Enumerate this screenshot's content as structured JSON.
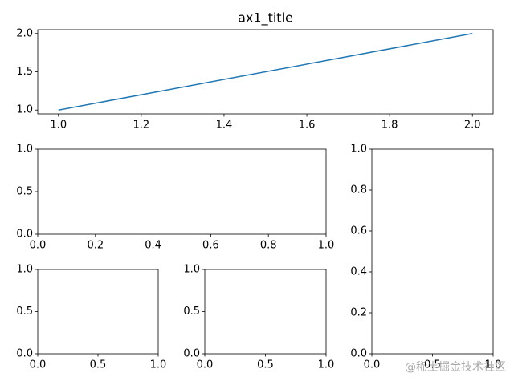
{
  "chart_data": [
    {
      "type": "line",
      "title": "ax1_title",
      "series": [
        {
          "color": "#1f77b4",
          "x": [
            1,
            2
          ],
          "values": [
            1,
            2
          ]
        }
      ],
      "xlim": [
        0.95,
        2.05
      ],
      "ylim": [
        0.95,
        2.05
      ],
      "xticks": [
        {
          "value": 1,
          "label": "1.0"
        },
        {
          "value": 1.2,
          "label": "1.2"
        },
        {
          "value": 1.4,
          "label": "1.4"
        },
        {
          "value": 1.6,
          "label": "1.6"
        },
        {
          "value": 1.8,
          "label": "1.8"
        },
        {
          "value": 2,
          "label": "2.0"
        }
      ],
      "yticks": [
        {
          "value": 1,
          "label": "1.0"
        },
        {
          "value": 1.5,
          "label": "1.5"
        },
        {
          "value": 2,
          "label": "2.0"
        }
      ]
    },
    {
      "type": "line",
      "xlim": [
        0,
        1
      ],
      "ylim": [
        0,
        1
      ],
      "xticks": [
        {
          "value": 0,
          "label": "0.0"
        },
        {
          "value": 0.2,
          "label": "0.2"
        },
        {
          "value": 0.4,
          "label": "0.4"
        },
        {
          "value": 0.6,
          "label": "0.6"
        },
        {
          "value": 0.8,
          "label": "0.8"
        },
        {
          "value": 1,
          "label": "1.0"
        }
      ],
      "yticks": [
        {
          "value": 0,
          "label": "0.0"
        },
        {
          "value": 0.5,
          "label": "0.5"
        },
        {
          "value": 1,
          "label": "1.0"
        }
      ]
    },
    {
      "type": "line",
      "xlim": [
        0,
        1
      ],
      "ylim": [
        0,
        1
      ],
      "xticks": [
        {
          "value": 0,
          "label": "0.0"
        },
        {
          "value": 0.5,
          "label": "0.5"
        },
        {
          "value": 1,
          "label": "1.0"
        }
      ],
      "yticks": [
        {
          "value": 0,
          "label": "0.0"
        },
        {
          "value": 0.2,
          "label": "0.2"
        },
        {
          "value": 0.4,
          "label": "0.4"
        },
        {
          "value": 0.6,
          "label": "0.6"
        },
        {
          "value": 0.8,
          "label": "0.8"
        },
        {
          "value": 1,
          "label": "1.0"
        }
      ]
    },
    {
      "type": "line",
      "xlim": [
        0,
        1
      ],
      "ylim": [
        0,
        1
      ],
      "xticks": [
        {
          "value": 0,
          "label": "0.0"
        },
        {
          "value": 0.5,
          "label": "0.5"
        },
        {
          "value": 1,
          "label": "1.0"
        }
      ],
      "yticks": [
        {
          "value": 0,
          "label": "0.0"
        },
        {
          "value": 0.5,
          "label": "0.5"
        },
        {
          "value": 1,
          "label": "1.0"
        }
      ]
    },
    {
      "type": "line",
      "xlim": [
        0,
        1
      ],
      "ylim": [
        0,
        1
      ],
      "xticks": [
        {
          "value": 0,
          "label": "0.0"
        },
        {
          "value": 0.5,
          "label": "0.5"
        },
        {
          "value": 1,
          "label": "1.0"
        }
      ],
      "yticks": [
        {
          "value": 0,
          "label": "0.0"
        },
        {
          "value": 0.5,
          "label": "0.5"
        },
        {
          "value": 1,
          "label": "1.0"
        }
      ]
    }
  ],
  "watermark": "@稀土掘金技术社区"
}
